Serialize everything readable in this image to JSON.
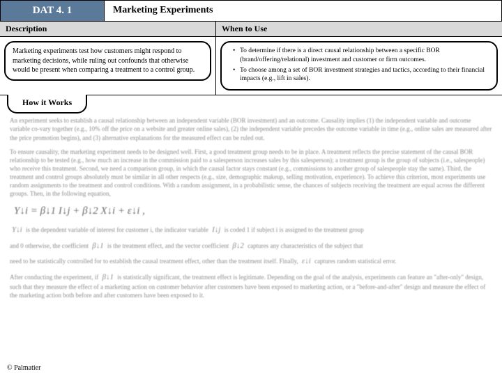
{
  "header": {
    "dat": "DAT 4. 1",
    "title": "Marketing Experiments"
  },
  "description": {
    "heading": "Description",
    "body": "Marketing experiments test how customers might respond to marketing decisions, while ruling out confounds that otherwise would be present when comparing a treatment to a control group."
  },
  "whenToUse": {
    "heading": "When to Use",
    "items": [
      "To determine if there is a direct causal relationship between a specific BOR (brand/offering/relational) investment and customer or firm outcomes.",
      "To choose among a set of BOR investment strategies and tactics, according to their financial impacts (e.g., lift in sales)."
    ]
  },
  "howItWorks": {
    "heading": "How it Works",
    "p1": "An experiment seeks to establish a causal relationship between an independent variable (BOR investment) and an outcome. Causality implies (1) the independent variable and outcome variable co-vary together (e.g., 10% off the price on a website and greater online sales), (2) the independent variable precedes the outcome variable in time (e.g., online sales are measured after the price promotion begins), and (3) alternative explanations for the measured effect can be ruled out.",
    "p2": "To ensure causality, the marketing experiment needs to be designed well. First, a good treatment group needs to be in place. A treatment reflects the precise statement of the causal BOR relationship to be tested (e.g., how much an increase in the commission paid to a salesperson increases sales by this salesperson); a treatment group is the group of subjects (i.e., salespeople) who receive this treatment. Second, we need a comparison group, in which the causal factor stays constant (e.g., commissions to another group of salespeople stay the same). Third, the treatment and control groups absolutely must be similar in all other respects (e.g., size, demographic makeup, selling motivation, experience). To achieve this criterion, most experiments use random assignments to the treatment and control conditions. With a random assignment, in a probabilistic sense, the chances of subjects receiving the treatment are equal across the different groups.        Then, in the following equation,",
    "formula": "Y↓i = β↓1 I↓j + β↓2 X↓i + ε↓i ,",
    "p3a": "is the dependent variable of interest for customer i, the indicator variable",
    "p3b": "is coded 1 if subject i is assigned to the treatment group",
    "p3c": "and 0 otherwise, the coefficient",
    "p3d": "is the treatment effect, and the vector coefficient",
    "p3e": "captures any characteristics of the subject that",
    "p4a": "need to be statistically controlled for to establish the causal treatment effect, other than the treatment itself. Finally,",
    "p4b": "captures random statistical error.",
    "p5": "After conducting the experiment, if",
    "p5b": "is statistically significant, the treatment effect is legitimate. Depending on the goal of the analysis, experiments can feature an \"after-only\" design, such that they measure the effect of a marketing action on customer behavior after customers have been exposed to marketing action, or a \"before-and-after\" design and measure the effect of the marketing action both before and after customers have been exposed to it.",
    "v_yi": "Y↓i",
    "v_ij": "I↓j",
    "v_b1": "β↓1",
    "v_b2": "β↓2",
    "v_ei": "ε↓i"
  },
  "footer": "© Palmatier"
}
